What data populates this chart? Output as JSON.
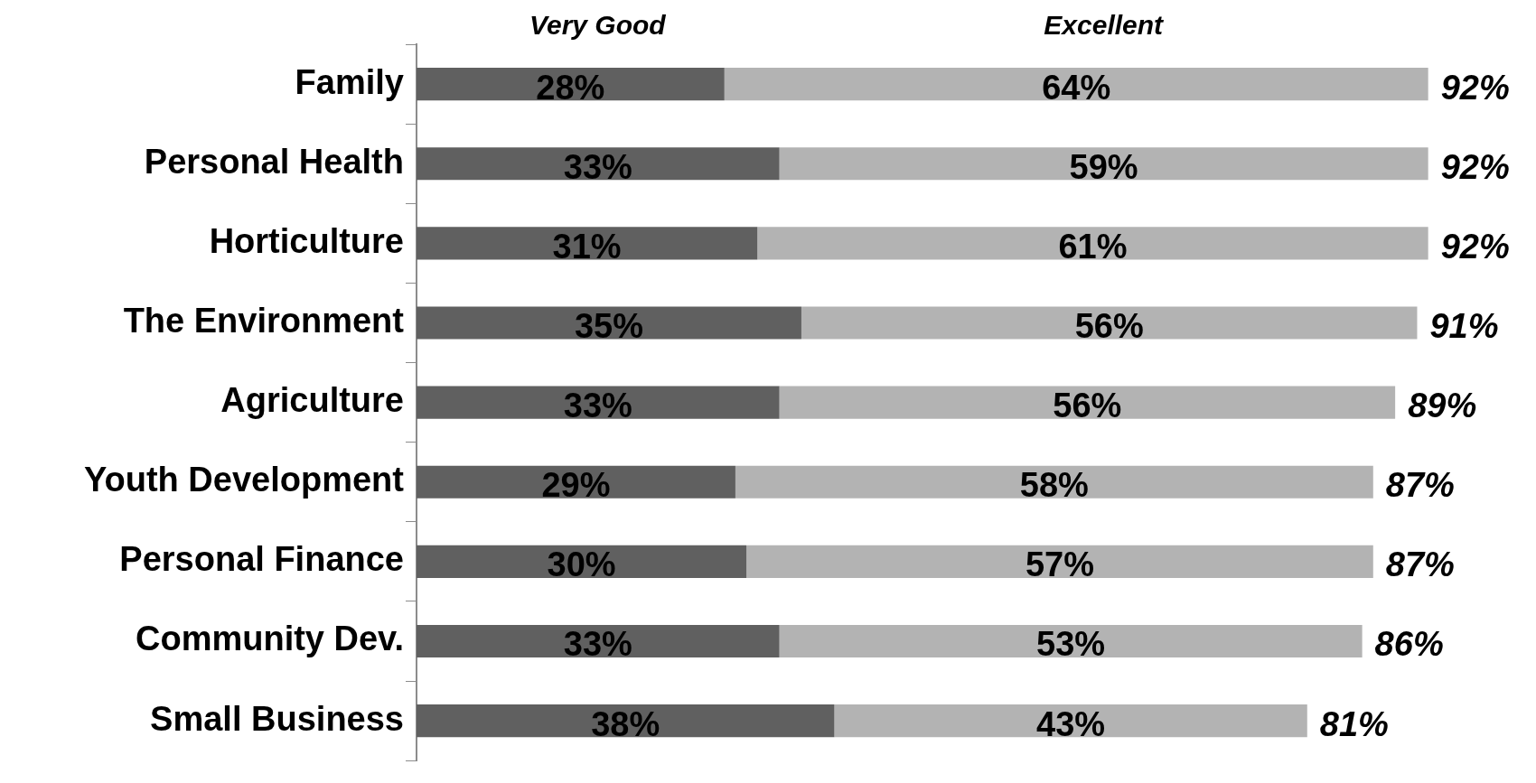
{
  "chart_data": {
    "type": "bar",
    "orientation": "horizontal",
    "stacked": true,
    "categories": [
      "Family",
      "Personal Health",
      "Horticulture",
      "The Environment",
      "Agriculture",
      "Youth Development",
      "Personal Finance",
      "Community Dev.",
      "Small Business"
    ],
    "series": [
      {
        "name": "Very Good",
        "color": "#606060",
        "values": [
          28,
          33,
          31,
          35,
          33,
          29,
          30,
          33,
          38
        ],
        "value_labels": [
          "28%",
          "33%",
          "31%",
          "35%",
          "33%",
          "29%",
          "30%",
          "33%",
          "38%"
        ]
      },
      {
        "name": "Excellent",
        "color": "#b3b3b3",
        "values": [
          64,
          59,
          61,
          56,
          56,
          58,
          57,
          53,
          43
        ],
        "value_labels": [
          "64%",
          "59%",
          "61%",
          "56%",
          "56%",
          "58%",
          "57%",
          "53%",
          "43%"
        ]
      }
    ],
    "totals": [
      "92%",
      "92%",
      "92%",
      "91%",
      "89%",
      "87%",
      "87%",
      "86%",
      "81%"
    ],
    "tick_labels": "y",
    "legend": "top"
  }
}
